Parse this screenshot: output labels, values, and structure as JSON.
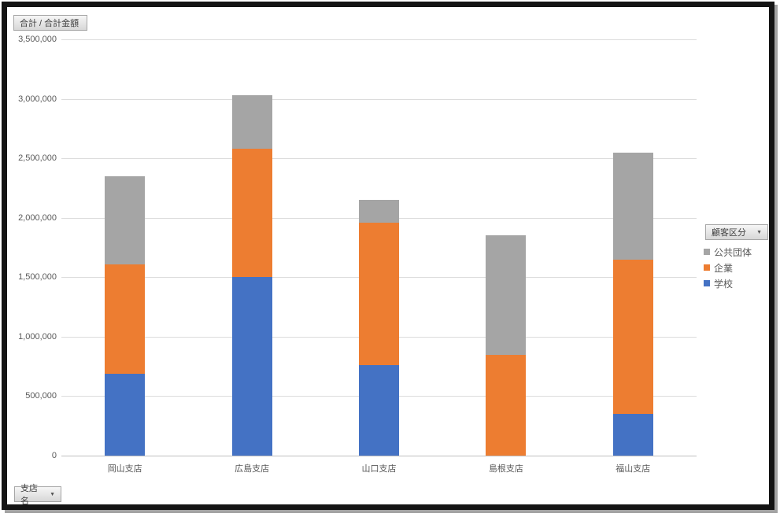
{
  "buttons": {
    "value_field": "合計 / 合計金額",
    "legend_field": "顧客区分",
    "axis_field": "支店名"
  },
  "chart_data": {
    "type": "bar",
    "stacked": true,
    "title": "合計 / 合計金額",
    "categories": [
      "岡山支店",
      "広島支店",
      "山口支店",
      "島根支店",
      "福山支店"
    ],
    "series": [
      {
        "name": "学校",
        "color": "#4472C4",
        "values": [
          690000,
          1500000,
          760000,
          0,
          350000
        ]
      },
      {
        "name": "企業",
        "color": "#ED7D31",
        "values": [
          920000,
          1080000,
          1200000,
          850000,
          1300000
        ]
      },
      {
        "name": "公共団体",
        "color": "#A5A5A5",
        "values": [
          740000,
          450000,
          190000,
          1000000,
          900000
        ]
      }
    ],
    "totals": [
      2350000,
      3030000,
      2150000,
      1850000,
      2550000
    ],
    "ylim": [
      0,
      3500000
    ],
    "ytick_interval": 500000,
    "ytick_labels": [
      "0",
      "500,000",
      "1,000,000",
      "1,500,000",
      "2,000,000",
      "2,500,000",
      "3,000,000",
      "3,500,000"
    ],
    "legend_title": "顧客区分",
    "legend_position": "right",
    "legend_items_order": [
      "公共団体",
      "企業",
      "学校"
    ],
    "grid": true,
    "xlabel": "",
    "ylabel": ""
  }
}
